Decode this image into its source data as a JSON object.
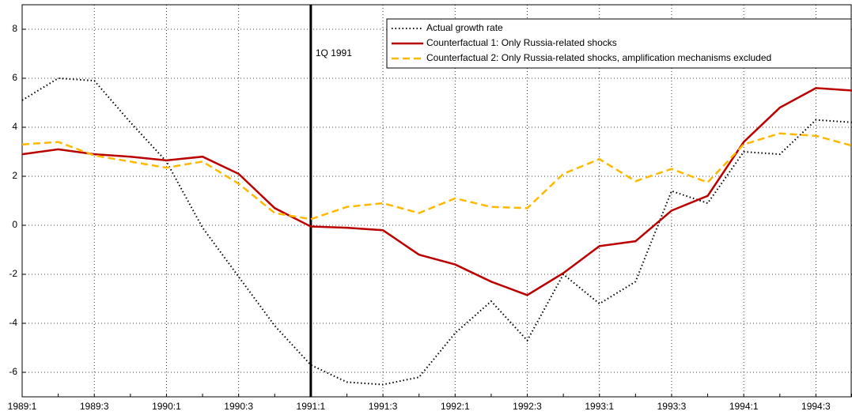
{
  "chart_data": {
    "type": "line",
    "categories": [
      "1989:1",
      null,
      "1989:3",
      null,
      "1990:1",
      null,
      "1990:3",
      null,
      "1991:1",
      null,
      "1991:3",
      null,
      "1992:1",
      null,
      "1992:3",
      null,
      "1993:1",
      null,
      "1993:3",
      null,
      "1994:1",
      null,
      "1994:3",
      null
    ],
    "series": [
      {
        "name": "Actual growth rate",
        "color": "#000000",
        "style": "dotted",
        "values": [
          5.1,
          6.0,
          5.9,
          4.2,
          2.6,
          -0.1,
          -2.1,
          -4.1,
          -5.7,
          -6.4,
          -6.5,
          -6.2,
          -4.4,
          -3.1,
          -4.7,
          -2.0,
          -3.2,
          -2.3,
          1.4,
          0.9,
          3.0,
          2.9,
          4.3,
          4.2
        ]
      },
      {
        "name": "Counterfactual 1: Only Russia-related shocks",
        "color": "#bb0000",
        "style": "solid",
        "values": [
          2.9,
          3.1,
          2.9,
          2.8,
          2.65,
          2.8,
          2.1,
          0.7,
          -0.05,
          -0.1,
          -0.2,
          -1.2,
          -1.6,
          -2.3,
          -2.85,
          -1.95,
          -0.85,
          -0.65,
          0.6,
          1.2,
          3.4,
          4.8,
          5.6,
          5.5
        ]
      },
      {
        "name": "Counterfactual 2: Only Russia-related shocks, amplification mechanisms excluded",
        "color": "#ffb800",
        "style": "dashed",
        "values": [
          3.3,
          3.4,
          2.85,
          2.6,
          2.35,
          2.6,
          1.7,
          0.5,
          0.25,
          0.75,
          0.9,
          0.5,
          1.1,
          0.75,
          0.7,
          2.1,
          2.7,
          1.8,
          2.3,
          1.75,
          3.3,
          3.75,
          3.65,
          3.25
        ]
      }
    ],
    "ylim": [
      -7,
      9
    ],
    "yticks": [
      -6,
      -4,
      -2,
      0,
      2,
      4,
      6,
      8
    ],
    "grid": true,
    "legend": "top-right",
    "annotations": [
      {
        "text": "1Q 1991",
        "x": "1991:1"
      }
    ]
  }
}
